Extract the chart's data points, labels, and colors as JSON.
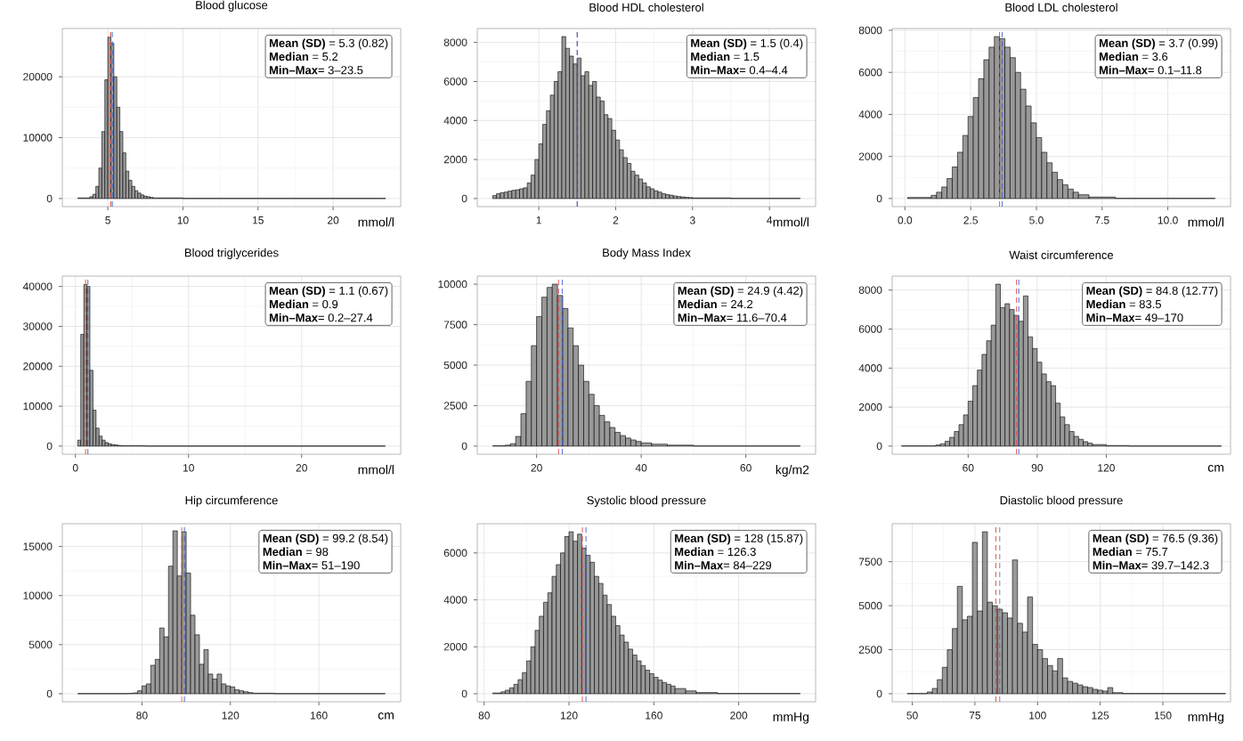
{
  "chart_data": [
    {
      "type": "histogram",
      "title": "Blood glucose",
      "xlabel": "mmol/l",
      "color": "#999999",
      "grid": true,
      "bins": [
        3,
        3.8,
        4.0,
        4.2,
        4.4,
        4.6,
        4.8,
        5.0,
        5.2,
        5.4,
        5.6,
        5.8,
        6.0,
        6.2,
        6.4,
        6.6,
        6.8,
        7.0,
        7.2,
        7.4,
        7.6,
        7.8,
        8.0,
        10,
        23.5
      ],
      "values": [
        100,
        300,
        700,
        2000,
        5000,
        11000,
        19500,
        26500,
        25500,
        20000,
        15000,
        11000,
        7500,
        4500,
        3000,
        2000,
        1300,
        900,
        600,
        400,
        300,
        200,
        100,
        20
      ],
      "xlim": [
        1.97,
        24.5
      ],
      "ylim": [
        -1330,
        27930
      ],
      "xticks": [
        5,
        10,
        15,
        20
      ],
      "yticks": [
        0,
        10000,
        20000
      ],
      "ref_lines": [
        {
          "axis": "x",
          "value": 5.2,
          "color": "#e0453f",
          "line_style": "dashed"
        },
        {
          "axis": "x",
          "value": 5.3,
          "color": "#3a5fd9",
          "line_style": "dashed"
        }
      ],
      "annotations": [
        "**Mean (SD)** = 5.3 (0.82)",
        "**Median** = 5.2",
        "**Min–Max**= 3–23.5"
      ]
    },
    {
      "type": "histogram",
      "title": "Blood HDL cholesterol",
      "xlabel": "mmol/l",
      "color": "#999999",
      "grid": true,
      "bins": [
        0.4,
        0.45,
        0.5,
        0.55,
        0.6,
        0.65,
        0.7,
        0.75,
        0.8,
        0.85,
        0.9,
        0.95,
        1.0,
        1.05,
        1.1,
        1.15,
        1.2,
        1.25,
        1.3,
        1.35,
        1.4,
        1.45,
        1.5,
        1.55,
        1.6,
        1.65,
        1.7,
        1.75,
        1.8,
        1.85,
        1.9,
        1.95,
        2.0,
        2.05,
        2.1,
        2.15,
        2.2,
        2.25,
        2.3,
        2.35,
        2.4,
        2.45,
        2.5,
        2.55,
        2.6,
        2.65,
        2.7,
        2.75,
        2.8,
        2.85,
        2.9,
        2.95,
        3.0,
        3.5,
        4.4
      ],
      "values": [
        150,
        250,
        300,
        330,
        380,
        420,
        450,
        500,
        550,
        800,
        1200,
        2000,
        2800,
        3800,
        4500,
        5300,
        6000,
        6500,
        8300,
        7700,
        7300,
        6900,
        7200,
        6300,
        6500,
        5800,
        6000,
        5200,
        5000,
        4300,
        4100,
        3500,
        3000,
        2500,
        2100,
        1800,
        1400,
        1200,
        1000,
        800,
        600,
        500,
        400,
        330,
        250,
        200,
        170,
        130,
        100,
        80,
        60,
        50,
        30,
        10
      ],
      "xlim": [
        0.2,
        4.6
      ],
      "ylim": [
        -415,
        8715
      ],
      "xticks": [
        1,
        2,
        3,
        4
      ],
      "yticks": [
        0,
        2000,
        4000,
        6000,
        8000
      ],
      "ref_lines": [
        {
          "axis": "x",
          "value": 1.5,
          "color": "#e0453f",
          "line_style": "dashed"
        },
        {
          "axis": "x",
          "value": 1.5,
          "color": "#3a5fd9",
          "line_style": "dashed"
        }
      ],
      "annotations": [
        "**Mean (SD)** = 1.5 (0.4)",
        "**Median** = 1.5",
        "**Min–Max**= 0.4–4.4"
      ]
    },
    {
      "type": "histogram",
      "title": "Blood LDL cholesterol",
      "xlabel": "mmol/l",
      "color": "#999999",
      "grid": true,
      "bins": [
        0.1,
        1.0,
        1.2,
        1.4,
        1.6,
        1.8,
        2.0,
        2.2,
        2.4,
        2.6,
        2.8,
        3.0,
        3.2,
        3.4,
        3.6,
        3.8,
        4.0,
        4.2,
        4.4,
        4.6,
        4.8,
        5.0,
        5.2,
        5.4,
        5.6,
        5.8,
        6.0,
        6.2,
        6.4,
        6.6,
        7.0,
        8.0,
        11.8
      ],
      "values": [
        50,
        150,
        300,
        550,
        950,
        1500,
        2200,
        3000,
        3900,
        4800,
        5700,
        6600,
        7200,
        7700,
        7600,
        7200,
        6700,
        6000,
        5200,
        4400,
        3600,
        2900,
        2200,
        1700,
        1250,
        900,
        650,
        450,
        300,
        180,
        70,
        10
      ],
      "xlim": [
        -0.485,
        12.385
      ],
      "ylim": [
        -385,
        8085
      ],
      "xticks": [
        {
          "value": 0,
          "label": "0.0"
        },
        {
          "value": 2.5,
          "label": "2.5"
        },
        {
          "value": 5,
          "label": "5.0"
        },
        {
          "value": 7.5,
          "label": "7.5"
        },
        {
          "value": 10,
          "label": "10.0"
        }
      ],
      "yticks": [
        0,
        2000,
        4000,
        6000,
        8000
      ],
      "ref_lines": [
        {
          "axis": "x",
          "value": 3.6,
          "color": "#e0453f",
          "line_style": "dashed"
        },
        {
          "axis": "x",
          "value": 3.7,
          "color": "#3a5fd9",
          "line_style": "dashed"
        }
      ],
      "annotations": [
        "**Mean (SD)** = 3.7 (0.99)",
        "**Median** = 3.6",
        "**Min–Max**= 0.1–11.8"
      ]
    },
    {
      "type": "histogram",
      "title": "Blood triglycerides",
      "xlabel": "mmol/l",
      "color": "#999999",
      "grid": true,
      "bins": [
        0.2,
        0.47,
        0.74,
        1.01,
        1.28,
        1.55,
        1.82,
        2.09,
        2.36,
        2.63,
        2.9,
        3.17,
        3.44,
        3.71,
        3.98,
        6.14,
        27.4
      ],
      "values": [
        1500,
        28000,
        40500,
        40000,
        19000,
        9000,
        4500,
        2500,
        1500,
        900,
        600,
        400,
        300,
        200,
        100,
        10
      ],
      "xlim": [
        -1.16,
        28.76
      ],
      "ylim": [
        -2030,
        42600
      ],
      "xticks": [
        0,
        10,
        20
      ],
      "yticks": [
        0,
        10000,
        20000,
        30000,
        40000
      ],
      "ref_lines": [
        {
          "axis": "x",
          "value": 0.9,
          "color": "#e0453f",
          "line_style": "dashed"
        },
        {
          "axis": "x",
          "value": 1.1,
          "color": "#3a5fd9",
          "line_style": "dashed"
        }
      ],
      "annotations": [
        "**Mean (SD)** = 1.1 (0.67)",
        "**Median** = 0.9",
        "**Min–Max**= 0.2–27.4"
      ]
    },
    {
      "type": "histogram",
      "title": "Body Mass Index",
      "xlabel": "kg/m2",
      "color": "#999999",
      "grid": true,
      "bins": [
        11.6,
        14,
        15,
        16,
        17,
        18,
        19,
        20,
        21,
        22,
        23,
        24,
        25,
        26,
        27,
        28,
        29,
        30,
        31,
        32,
        33,
        34,
        35,
        36,
        37,
        38,
        39,
        40,
        42,
        45,
        50,
        70.4
      ],
      "values": [
        20,
        60,
        150,
        600,
        2000,
        4000,
        6200,
        8000,
        9200,
        9800,
        10000,
        9300,
        8500,
        7300,
        6200,
        5000,
        4000,
        3200,
        2500,
        1900,
        1500,
        1150,
        850,
        650,
        500,
        380,
        290,
        200,
        120,
        60,
        10
      ],
      "xlim": [
        8.66,
        73.34
      ],
      "ylim": [
        -500,
        10500
      ],
      "xticks": [
        20,
        40,
        60
      ],
      "yticks": [
        0,
        2500,
        5000,
        7500,
        10000
      ],
      "ref_lines": [
        {
          "axis": "x",
          "value": 24.2,
          "color": "#e0453f",
          "line_style": "dashed"
        },
        {
          "axis": "x",
          "value": 24.9,
          "color": "#3a5fd9",
          "line_style": "dashed"
        }
      ],
      "annotations": [
        "**Mean (SD)** = 24.9 (4.42)",
        "**Median** = 24.2",
        "**Min–Max**= 11.6–70.4"
      ]
    },
    {
      "type": "histogram",
      "title": "Waist circumference",
      "xlabel": "cm",
      "color": "#999999",
      "grid": true,
      "bins": [
        31,
        46,
        48,
        50,
        52,
        54,
        56,
        58,
        60,
        62,
        64,
        66,
        68,
        70,
        72,
        74,
        76,
        78,
        80,
        82,
        84,
        86,
        88,
        90,
        92,
        94,
        96,
        98,
        100,
        102,
        104,
        106,
        108,
        110,
        112,
        114,
        120,
        130,
        170
      ],
      "values": [
        10,
        60,
        120,
        250,
        450,
        750,
        1100,
        1600,
        2300,
        3100,
        3900,
        4700,
        5400,
        6200,
        8300,
        7100,
        7300,
        7000,
        6700,
        6400,
        7700,
        5600,
        5000,
        4300,
        3700,
        3300,
        3100,
        2200,
        1500,
        1100,
        750,
        500,
        350,
        230,
        150,
        80,
        30,
        5
      ],
      "xlim": [
        27,
        174
      ],
      "ylim": [
        -415,
        8715
      ],
      "xticks": [
        60,
        90,
        120
      ],
      "yticks": [
        0,
        2000,
        4000,
        6000,
        8000
      ],
      "ref_lines": [
        {
          "axis": "x",
          "value": 81,
          "color": "#e0453f",
          "line_style": "dashed"
        },
        {
          "axis": "x",
          "value": 82,
          "color": "#3a5fd9",
          "line_style": "dashed"
        }
      ],
      "annotations": [
        "**Mean (SD)** = 84.8 (12.77)",
        "**Median** = 83.5",
        "**Min–Max**= 49–170"
      ]
    },
    {
      "type": "histogram",
      "title": "Hip circumference",
      "xlabel": "cm",
      "color": "#999999",
      "grid": true,
      "bins": [
        51,
        74,
        76,
        78,
        80,
        82,
        84,
        86,
        88,
        90,
        92,
        94,
        96,
        98,
        100,
        102,
        104,
        106,
        108,
        110,
        112,
        114,
        116,
        118,
        120,
        122,
        124,
        126,
        128,
        130,
        140,
        190
      ],
      "values": [
        10,
        30,
        80,
        300,
        800,
        1000,
        2900,
        3500,
        6700,
        5800,
        13000,
        16600,
        12000,
        16500,
        12300,
        8000,
        6000,
        3000,
        4500,
        2000,
        1500,
        2000,
        1000,
        800,
        700,
        400,
        300,
        200,
        120,
        50,
        5
      ],
      "xlim": [
        44,
        197
      ],
      "ylim": [
        -825,
        17325
      ],
      "xticks": [
        80,
        120,
        160
      ],
      "yticks": [
        0,
        5000,
        10000,
        15000
      ],
      "ref_lines": [
        {
          "axis": "x",
          "value": 98,
          "color": "#e0453f",
          "line_style": "dashed"
        },
        {
          "axis": "x",
          "value": 99.2,
          "color": "#3a5fd9",
          "line_style": "dashed"
        }
      ],
      "annotations": [
        "**Mean (SD)** = 99.2 (8.54)",
        "**Median** = 98",
        "**Min–Max**= 51–190"
      ]
    },
    {
      "type": "histogram",
      "title": "Systolic blood pressure",
      "xlabel": "mmHg",
      "color": "#999999",
      "grid": true,
      "bins": [
        84,
        88,
        90,
        92,
        94,
        96,
        98,
        100,
        102,
        104,
        106,
        108,
        110,
        112,
        114,
        116,
        118,
        120,
        122,
        124,
        126,
        128,
        130,
        132,
        134,
        136,
        138,
        140,
        142,
        144,
        146,
        148,
        150,
        152,
        154,
        156,
        158,
        160,
        162,
        164,
        166,
        168,
        170,
        175,
        180,
        190,
        229
      ],
      "values": [
        30,
        80,
        150,
        250,
        400,
        600,
        900,
        1400,
        2000,
        2700,
        3300,
        3900,
        4300,
        5000,
        5500,
        6000,
        6700,
        6900,
        6500,
        6800,
        6200,
        5900,
        5600,
        5000,
        4700,
        4200,
        3800,
        3300,
        2900,
        2500,
        2200,
        1900,
        1650,
        1400,
        1200,
        1000,
        850,
        700,
        580,
        480,
        400,
        330,
        220,
        120,
        50,
        8
      ],
      "xlim": [
        76.75,
        236.25
      ],
      "ylim": [
        -345,
        7245
      ],
      "xticks": [
        80,
        120,
        160,
        200
      ],
      "yticks": [
        0,
        2000,
        4000,
        6000
      ],
      "ref_lines": [
        {
          "axis": "x",
          "value": 126.3,
          "color": "#e0453f",
          "line_style": "dashed"
        },
        {
          "axis": "x",
          "value": 128,
          "color": "#3a5fd9",
          "line_style": "dashed"
        }
      ],
      "annotations": [
        "**Mean (SD)** = 128 (15.87)",
        "**Median** = 126.3",
        "**Min–Max**= 84–229"
      ]
    },
    {
      "type": "histogram",
      "title": "Diastolic blood pressure",
      "xlabel": "mmHg",
      "color": "#999999",
      "grid": true,
      "bins": [
        48,
        56,
        58,
        60,
        62,
        64,
        66,
        68,
        70,
        72,
        74,
        76,
        78,
        80,
        82,
        84,
        86,
        88,
        90,
        92,
        94,
        96,
        98,
        100,
        102,
        104,
        106,
        108,
        110,
        112,
        114,
        116,
        118,
        120,
        122,
        124,
        126,
        128,
        130,
        134,
        175
      ],
      "values": [
        10,
        100,
        300,
        800,
        1500,
        2500,
        3700,
        6100,
        4200,
        4400,
        8600,
        4700,
        9200,
        5200,
        5000,
        4800,
        4600,
        4300,
        7600,
        4000,
        3500,
        5500,
        2800,
        2500,
        2000,
        1600,
        1300,
        2000,
        900,
        700,
        600,
        500,
        400,
        350,
        250,
        200,
        150,
        350,
        60,
        10
      ],
      "xlim": [
        42,
        177
      ],
      "ylim": [
        -460,
        9660
      ],
      "xticks": [
        50,
        75,
        100,
        125,
        150
      ],
      "yticks": [
        0,
        2500,
        5000,
        7500
      ],
      "ref_lines": [
        {
          "axis": "x",
          "value": 83.4,
          "color": "#e0453f",
          "line_style": "dashed"
        },
        {
          "axis": "x",
          "value": 84.9,
          "color": "#3a5fd9",
          "line_style": "dashed"
        }
      ],
      "annotations": [
        "**Mean (SD)** = 76.5 (9.36)",
        "**Median** = 75.7",
        "**Min–Max**= 39.7–142.3"
      ]
    }
  ]
}
